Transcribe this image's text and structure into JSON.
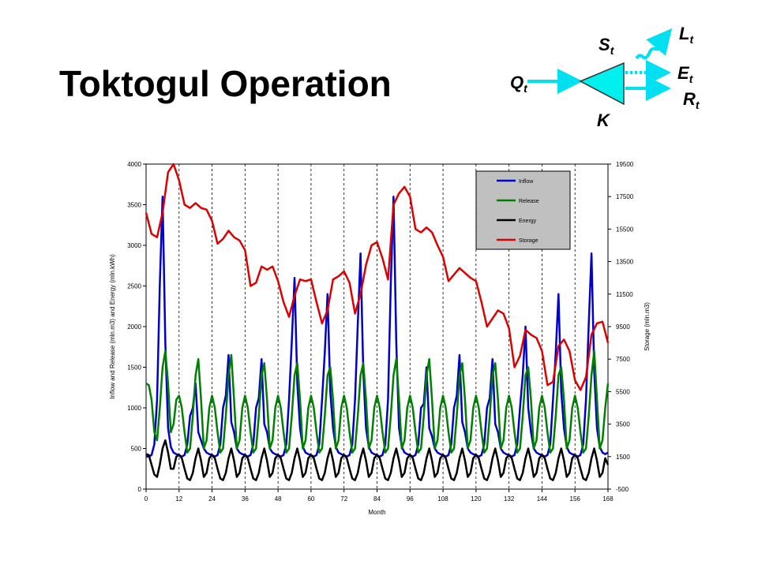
{
  "slide_title": "Toktogul Operation",
  "diagram": {
    "labels": [
      {
        "symbol": "Q",
        "subscript": "t"
      },
      {
        "symbol": "S",
        "subscript": "t"
      },
      {
        "symbol": "L",
        "subscript": "t"
      },
      {
        "symbol": "E",
        "subscript": "t"
      },
      {
        "symbol": "R",
        "subscript": "t"
      },
      {
        "symbol": "K"
      }
    ]
  },
  "chart_data": {
    "type": "line",
    "xlabel": "Month",
    "ylabel": "Inflow and Release (mln.m3) and Energy (mln.kWh)",
    "y2label": "Storage (mln.m3)",
    "xlim": [
      0,
      168
    ],
    "xticks": [
      0,
      12,
      24,
      36,
      48,
      60,
      72,
      84,
      96,
      108,
      120,
      132,
      144,
      156,
      168
    ],
    "ylim": [
      0,
      4000
    ],
    "yticks": [
      0,
      500,
      1000,
      1500,
      2000,
      2500,
      3000,
      3500,
      4000
    ],
    "y2lim": [
      -500,
      19500
    ],
    "y2ticks": [
      -500,
      1500,
      3500,
      5500,
      7500,
      9500,
      11500,
      13500,
      15500,
      17500,
      19500
    ],
    "grid": "x-dashed",
    "legend": "upper right",
    "x": [
      0,
      1,
      2,
      3,
      4,
      5,
      6,
      7,
      8,
      9,
      10,
      11,
      12,
      13,
      14,
      15,
      16,
      17,
      18,
      19,
      20,
      21,
      22,
      23,
      24,
      25,
      26,
      27,
      28,
      29,
      30,
      31,
      32,
      33,
      34,
      35,
      36,
      37,
      38,
      39,
      40,
      41,
      42,
      43,
      44,
      45,
      46,
      47,
      48,
      49,
      50,
      51,
      52,
      53,
      54,
      55,
      56,
      57,
      58,
      59,
      60,
      61,
      62,
      63,
      64,
      65,
      66,
      67,
      68,
      69,
      70,
      71,
      72,
      73,
      74,
      75,
      76,
      77,
      78,
      79,
      80,
      81,
      82,
      83,
      84,
      85,
      86,
      87,
      88,
      89,
      90,
      91,
      92,
      93,
      94,
      95,
      96,
      97,
      98,
      99,
      100,
      101,
      102,
      103,
      104,
      105,
      106,
      107,
      108,
      109,
      110,
      111,
      112,
      113,
      114,
      115,
      116,
      117,
      118,
      119,
      120,
      121,
      122,
      123,
      124,
      125,
      126,
      127,
      128,
      129,
      130,
      131,
      132,
      133,
      134,
      135,
      136,
      137,
      138,
      139,
      140,
      141,
      142,
      143,
      144,
      145,
      146,
      147,
      148,
      149,
      150,
      151,
      152,
      153,
      154,
      155,
      156,
      157,
      158,
      159,
      160,
      161,
      162,
      163,
      164,
      165,
      166,
      167,
      168
    ],
    "series": [
      {
        "name": "Inflow",
        "color": "#0000cc",
        "values": [
          400,
          400,
          420,
          550,
          1100,
          2520,
          3600,
          1800,
          750,
          520,
          450,
          430,
          420,
          400,
          420,
          550,
          900,
          1000,
          1300,
          700,
          600,
          500,
          450,
          430,
          420,
          400,
          420,
          550,
          1000,
          1150,
          1650,
          825,
          700,
          500,
          450,
          430,
          420,
          400,
          420,
          550,
          1000,
          1120,
          1600,
          800,
          700,
          500,
          450,
          430,
          420,
          400,
          420,
          550,
          1100,
          1820,
          2600,
          1300,
          750,
          520,
          450,
          430,
          420,
          400,
          420,
          550,
          1100,
          1680,
          2400,
          1200,
          750,
          520,
          450,
          430,
          420,
          400,
          420,
          550,
          1100,
          2030,
          2900,
          1450,
          750,
          520,
          450,
          430,
          420,
          400,
          420,
          550,
          1100,
          2520,
          3600,
          1800,
          750,
          520,
          450,
          430,
          420,
          400,
          420,
          550,
          1000,
          1050,
          1500,
          750,
          650,
          500,
          450,
          430,
          420,
          400,
          420,
          550,
          1000,
          1150,
          1650,
          825,
          700,
          500,
          450,
          430,
          420,
          400,
          420,
          550,
          1000,
          1120,
          1600,
          800,
          700,
          500,
          450,
          430,
          420,
          400,
          420,
          550,
          1000,
          1400,
          2000,
          1000,
          700,
          500,
          450,
          430,
          420,
          400,
          420,
          550,
          1100,
          1680,
          2400,
          1200,
          750,
          520,
          450,
          430,
          420,
          400,
          420,
          550,
          1100,
          2030,
          2900,
          1450,
          750,
          520,
          450,
          430,
          450
        ]
      },
      {
        "name": "Release",
        "color": "#008000",
        "values": [
          1300,
          1280,
          1100,
          700,
          600,
          1000,
          1500,
          1700,
          1300,
          700,
          800,
          1100,
          1150,
          1000,
          700,
          450,
          500,
          900,
          1400,
          1600,
          1100,
          500,
          600,
          1000,
          1150,
          1000,
          700,
          450,
          500,
          900,
          1400,
          1650,
          1100,
          500,
          600,
          1000,
          1150,
          1000,
          700,
          450,
          500,
          900,
          1400,
          1550,
          1100,
          500,
          600,
          1000,
          1150,
          1000,
          700,
          450,
          500,
          900,
          1400,
          1550,
          1100,
          500,
          600,
          1000,
          1150,
          1000,
          700,
          450,
          500,
          900,
          1400,
          1500,
          1100,
          500,
          600,
          1000,
          1150,
          1000,
          700,
          450,
          500,
          900,
          1400,
          1550,
          1100,
          500,
          600,
          1000,
          1150,
          1000,
          700,
          450,
          500,
          900,
          1400,
          1600,
          1100,
          500,
          600,
          1000,
          1150,
          1000,
          700,
          450,
          500,
          900,
          1400,
          1600,
          1100,
          500,
          600,
          1000,
          1150,
          1000,
          700,
          450,
          500,
          900,
          1400,
          1550,
          1100,
          500,
          600,
          1000,
          1150,
          1000,
          700,
          450,
          500,
          900,
          1400,
          1550,
          1100,
          500,
          600,
          1000,
          1150,
          1000,
          700,
          450,
          500,
          900,
          1400,
          1500,
          1100,
          500,
          600,
          1000,
          1150,
          1000,
          700,
          450,
          500,
          900,
          1400,
          1500,
          1100,
          500,
          600,
          1000,
          1150,
          1000,
          700,
          450,
          500,
          900,
          1400,
          1700,
          1100,
          500,
          600,
          1000,
          1300
        ]
      },
      {
        "name": "Energy",
        "color": "#000000",
        "values": [
          430,
          420,
          300,
          180,
          150,
          300,
          500,
          600,
          450,
          250,
          250,
          400,
          420,
          380,
          250,
          130,
          110,
          200,
          380,
          500,
          350,
          150,
          200,
          380,
          420,
          380,
          250,
          130,
          110,
          200,
          380,
          500,
          350,
          150,
          200,
          380,
          420,
          380,
          250,
          130,
          110,
          200,
          380,
          500,
          350,
          150,
          200,
          380,
          420,
          380,
          250,
          130,
          110,
          200,
          380,
          500,
          350,
          150,
          200,
          380,
          420,
          380,
          250,
          130,
          110,
          200,
          380,
          500,
          350,
          150,
          200,
          380,
          420,
          380,
          250,
          130,
          110,
          200,
          380,
          500,
          350,
          150,
          200,
          380,
          420,
          380,
          250,
          130,
          110,
          200,
          380,
          500,
          350,
          150,
          200,
          380,
          420,
          380,
          250,
          130,
          110,
          200,
          380,
          500,
          350,
          150,
          200,
          380,
          420,
          380,
          250,
          130,
          110,
          200,
          380,
          500,
          350,
          150,
          200,
          380,
          420,
          380,
          250,
          130,
          110,
          200,
          380,
          500,
          350,
          150,
          200,
          380,
          420,
          380,
          250,
          130,
          110,
          200,
          380,
          500,
          350,
          150,
          200,
          380,
          420,
          380,
          250,
          130,
          110,
          200,
          380,
          500,
          350,
          150,
          200,
          380,
          420,
          380,
          250,
          130,
          110,
          200,
          380,
          500,
          350,
          150,
          200,
          380,
          300
        ]
      },
      {
        "name": "Storage",
        "color": "#dd0000",
        "axis": "y2",
        "x": [
          0,
          2,
          4,
          6,
          8,
          10,
          12,
          14,
          16,
          18,
          20,
          22,
          24,
          26,
          28,
          30,
          32,
          34,
          36,
          38,
          40,
          42,
          44,
          46,
          48,
          50,
          52,
          54,
          56,
          58,
          60,
          62,
          64,
          66,
          68,
          70,
          72,
          74,
          76,
          78,
          80,
          82,
          84,
          86,
          88,
          90,
          92,
          94,
          96,
          98,
          100,
          102,
          104,
          106,
          108,
          110,
          112,
          114,
          116,
          118,
          120,
          122,
          124,
          126,
          128,
          130,
          132,
          134,
          136,
          138,
          140,
          142,
          144,
          146,
          148,
          150,
          152,
          154,
          156,
          158,
          160,
          162,
          164,
          166,
          168
        ],
        "values": [
          16500,
          15200,
          15000,
          16500,
          19000,
          19500,
          18500,
          17000,
          16800,
          17100,
          16800,
          16700,
          16000,
          14600,
          14900,
          15400,
          15000,
          14800,
          14200,
          12000,
          12200,
          13200,
          13000,
          13200,
          12300,
          11000,
          10100,
          11400,
          12400,
          12300,
          12400,
          11000,
          9700,
          10500,
          12400,
          12600,
          12900,
          12200,
          10300,
          11500,
          13300,
          14500,
          14700,
          13700,
          12400,
          17000,
          17700,
          18100,
          17500,
          15500,
          15300,
          15600,
          15300,
          14500,
          13800,
          12300,
          12700,
          13100,
          12800,
          12500,
          12300,
          11000,
          9500,
          10000,
          10500,
          10300,
          9400,
          7000,
          7700,
          9300,
          9000,
          8800,
          8000,
          5900,
          6100,
          8300,
          8700,
          8000,
          6200,
          5600,
          6400,
          9000,
          9700,
          9800,
          8500
        ]
      }
    ]
  }
}
